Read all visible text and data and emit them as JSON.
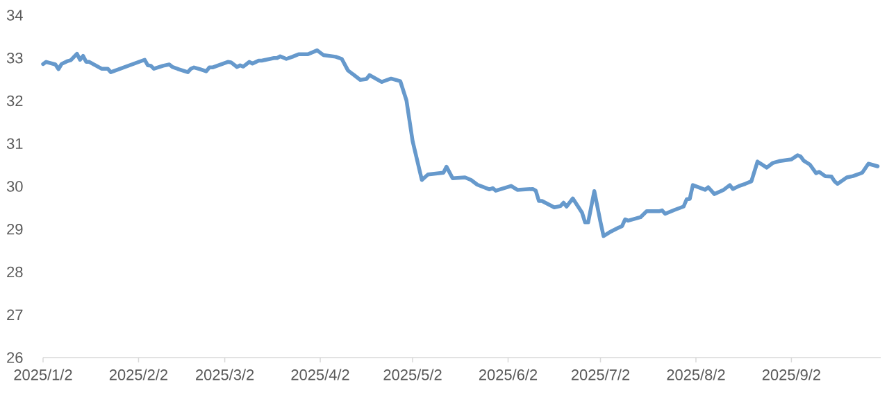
{
  "chart_data": {
    "type": "line",
    "x": [
      "2025-01-02",
      "2025-01-03",
      "2025-01-06",
      "2025-01-07",
      "2025-01-08",
      "2025-01-10",
      "2025-01-11",
      "2025-01-13",
      "2025-01-14",
      "2025-01-15",
      "2025-01-16",
      "2025-01-17",
      "2025-01-21",
      "2025-01-23",
      "2025-01-24",
      "2025-02-04",
      "2025-02-05",
      "2025-02-06",
      "2025-02-07",
      "2025-02-10",
      "2025-02-12",
      "2025-02-13",
      "2025-02-15",
      "2025-02-18",
      "2025-02-19",
      "2025-02-20",
      "2025-02-22",
      "2025-02-24",
      "2025-02-25",
      "2025-02-26",
      "2025-03-03",
      "2025-03-04",
      "2025-03-06",
      "2025-03-07",
      "2025-03-08",
      "2025-03-10",
      "2025-03-11",
      "2025-03-13",
      "2025-03-14",
      "2025-03-18",
      "2025-03-19",
      "2025-03-20",
      "2025-03-22",
      "2025-03-24",
      "2025-03-26",
      "2025-03-29",
      "2025-04-01",
      "2025-04-03",
      "2025-04-07",
      "2025-04-09",
      "2025-04-11",
      "2025-04-15",
      "2025-04-17",
      "2025-04-18",
      "2025-04-22",
      "2025-04-23",
      "2025-04-25",
      "2025-04-28",
      "2025-04-30",
      "2025-05-02",
      "2025-05-05",
      "2025-05-07",
      "2025-05-12",
      "2025-05-13",
      "2025-05-15",
      "2025-05-19",
      "2025-05-21",
      "2025-05-23",
      "2025-05-27",
      "2025-05-28",
      "2025-05-29",
      "2025-06-03",
      "2025-06-05",
      "2025-06-10",
      "2025-06-11",
      "2025-06-12",
      "2025-06-13",
      "2025-06-17",
      "2025-06-19",
      "2025-06-20",
      "2025-06-21",
      "2025-06-23",
      "2025-06-26",
      "2025-06-27",
      "2025-06-28",
      "2025-06-30",
      "2025-07-02",
      "2025-07-03",
      "2025-07-05",
      "2025-07-08",
      "2025-07-09",
      "2025-07-10",
      "2025-07-11",
      "2025-07-15",
      "2025-07-17",
      "2025-07-21",
      "2025-07-22",
      "2025-07-23",
      "2025-07-26",
      "2025-07-29",
      "2025-07-30",
      "2025-07-31",
      "2025-08-01",
      "2025-08-05",
      "2025-08-06",
      "2025-08-08",
      "2025-08-11",
      "2025-08-13",
      "2025-08-14",
      "2025-08-16",
      "2025-08-18",
      "2025-08-20",
      "2025-08-22",
      "2025-08-25",
      "2025-08-27",
      "2025-08-29",
      "2025-09-02",
      "2025-09-04",
      "2025-09-05",
      "2025-09-06",
      "2025-09-08",
      "2025-09-10",
      "2025-09-11",
      "2025-09-13",
      "2025-09-15",
      "2025-09-16",
      "2025-09-17",
      "2025-09-20",
      "2025-09-22",
      "2025-09-25",
      "2025-09-27",
      "2025-09-30"
    ],
    "series": [
      {
        "color": "#6699cc",
        "values": [
          32.86,
          32.91,
          32.85,
          32.74,
          32.86,
          32.93,
          32.95,
          33.1,
          32.96,
          33.05,
          32.91,
          32.91,
          32.75,
          32.75,
          32.67,
          32.96,
          32.83,
          32.82,
          32.75,
          32.82,
          32.85,
          32.79,
          32.74,
          32.67,
          32.75,
          32.78,
          32.74,
          32.69,
          32.78,
          32.78,
          32.91,
          32.9,
          32.79,
          32.83,
          32.8,
          32.91,
          32.87,
          32.94,
          32.94,
          33.0,
          33.0,
          33.04,
          32.98,
          33.03,
          33.09,
          33.09,
          33.18,
          33.07,
          33.03,
          32.98,
          32.71,
          32.49,
          32.51,
          32.6,
          32.44,
          32.47,
          32.52,
          32.46,
          32.01,
          31.06,
          30.15,
          30.28,
          30.32,
          30.46,
          30.19,
          30.21,
          30.15,
          30.04,
          29.93,
          29.96,
          29.9,
          30.01,
          29.92,
          29.94,
          29.9,
          29.66,
          29.66,
          29.51,
          29.54,
          29.62,
          29.53,
          29.72,
          29.39,
          29.16,
          29.16,
          29.89,
          29.17,
          28.84,
          28.93,
          29.04,
          29.07,
          29.23,
          29.2,
          29.28,
          29.42,
          29.42,
          29.44,
          29.36,
          29.45,
          29.53,
          29.7,
          29.71,
          30.03,
          29.92,
          29.98,
          29.82,
          29.92,
          30.03,
          29.94,
          30.01,
          30.06,
          30.12,
          30.58,
          30.44,
          30.55,
          30.59,
          30.63,
          30.73,
          30.7,
          30.6,
          30.51,
          30.31,
          30.34,
          30.24,
          30.23,
          30.12,
          30.06,
          30.21,
          30.24,
          30.32,
          30.53,
          30.47
        ]
      }
    ],
    "xlim": [
      "2025-01-02",
      "2025-10-01"
    ],
    "xticks": [
      {
        "value": "2025-01-02",
        "label": "2025/1/2"
      },
      {
        "value": "2025-02-02",
        "label": "2025/2/2"
      },
      {
        "value": "2025-03-02",
        "label": "2025/3/2"
      },
      {
        "value": "2025-04-02",
        "label": "2025/4/2"
      },
      {
        "value": "2025-05-02",
        "label": "2025/5/2"
      },
      {
        "value": "2025-06-02",
        "label": "2025/6/2"
      },
      {
        "value": "2025-07-02",
        "label": "2025/7/2"
      },
      {
        "value": "2025-08-02",
        "label": "2025/8/2"
      },
      {
        "value": "2025-09-02",
        "label": "2025/9/2"
      }
    ],
    "ylim": [
      26,
      34
    ],
    "yticks": [
      26,
      27,
      28,
      29,
      30,
      31,
      32,
      33,
      34
    ],
    "line_style": "solid"
  }
}
